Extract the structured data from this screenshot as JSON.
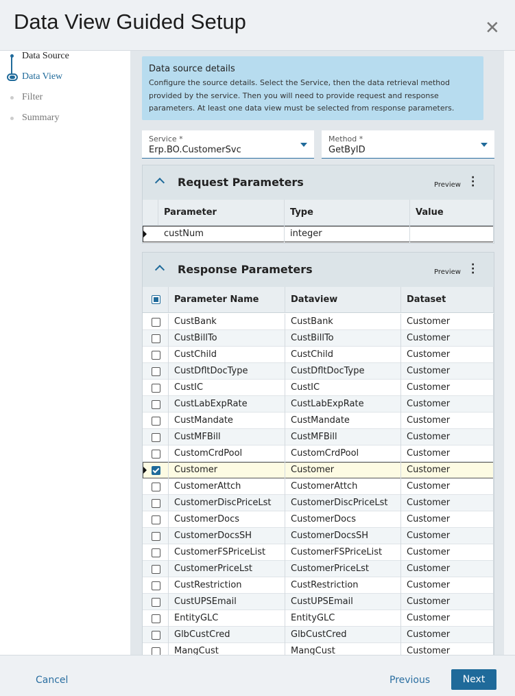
{
  "header": {
    "title": "Data View Guided Setup"
  },
  "steps": [
    "Data Source",
    "Data View",
    "Filter",
    "Summary"
  ],
  "info": {
    "title": "Data source details",
    "text": "Configure the source details. Select the Service, then the data retrieval method provided by the service. Then you will need to provide request and response parameters. At least one data view must be selected from response parameters."
  },
  "service": {
    "label": "Service *",
    "value": "Erp.BO.CustomerSvc"
  },
  "method": {
    "label": "Method *",
    "value": "GetByID"
  },
  "request": {
    "title": "Request Parameters",
    "preview": "Preview",
    "columns": [
      "Parameter",
      "Type",
      "Value"
    ],
    "rows": [
      {
        "parameter": "custNum",
        "type": "integer"
      }
    ]
  },
  "response": {
    "title": "Response Parameters",
    "preview": "Preview",
    "columns": [
      "Parameter Name",
      "Dataview",
      "Dataset"
    ],
    "rows": [
      {
        "name": "CustBank",
        "dataview": "CustBank",
        "dataset": "Customer",
        "checked": false
      },
      {
        "name": "CustBillTo",
        "dataview": "CustBillTo",
        "dataset": "Customer",
        "checked": false
      },
      {
        "name": "CustChild",
        "dataview": "CustChild",
        "dataset": "Customer",
        "checked": false
      },
      {
        "name": "CustDfltDocType",
        "dataview": "CustDfltDocType",
        "dataset": "Customer",
        "checked": false
      },
      {
        "name": "CustIC",
        "dataview": "CustIC",
        "dataset": "Customer",
        "checked": false
      },
      {
        "name": "CustLabExpRate",
        "dataview": "CustLabExpRate",
        "dataset": "Customer",
        "checked": false
      },
      {
        "name": "CustMandate",
        "dataview": "CustMandate",
        "dataset": "Customer",
        "checked": false
      },
      {
        "name": "CustMFBill",
        "dataview": "CustMFBill",
        "dataset": "Customer",
        "checked": false
      },
      {
        "name": "CustomCrdPool",
        "dataview": "CustomCrdPool",
        "dataset": "Customer",
        "checked": false
      },
      {
        "name": "Customer",
        "dataview": "Customer",
        "dataset": "Customer",
        "checked": true
      },
      {
        "name": "CustomerAttch",
        "dataview": "CustomerAttch",
        "dataset": "Customer",
        "checked": false
      },
      {
        "name": "CustomerDiscPriceLst",
        "dataview": "CustomerDiscPriceLst",
        "dataset": "Customer",
        "checked": false
      },
      {
        "name": "CustomerDocs",
        "dataview": "CustomerDocs",
        "dataset": "Customer",
        "checked": false
      },
      {
        "name": "CustomerDocsSH",
        "dataview": "CustomerDocsSH",
        "dataset": "Customer",
        "checked": false
      },
      {
        "name": "CustomerFSPriceList",
        "dataview": "CustomerFSPriceList",
        "dataset": "Customer",
        "checked": false
      },
      {
        "name": "CustomerPriceLst",
        "dataview": "CustomerPriceLst",
        "dataset": "Customer",
        "checked": false
      },
      {
        "name": "CustRestriction",
        "dataview": "CustRestriction",
        "dataset": "Customer",
        "checked": false
      },
      {
        "name": "CustUPSEmail",
        "dataview": "CustUPSEmail",
        "dataset": "Customer",
        "checked": false
      },
      {
        "name": "EntityGLC",
        "dataview": "EntityGLC",
        "dataset": "Customer",
        "checked": false
      },
      {
        "name": "GlbCustCred",
        "dataview": "GlbCustCred",
        "dataset": "Customer",
        "checked": false
      },
      {
        "name": "MangCust",
        "dataview": "MangCust",
        "dataset": "Customer",
        "checked": false
      }
    ]
  },
  "footer": {
    "cancel": "Cancel",
    "previous": "Previous",
    "next": "Next"
  }
}
